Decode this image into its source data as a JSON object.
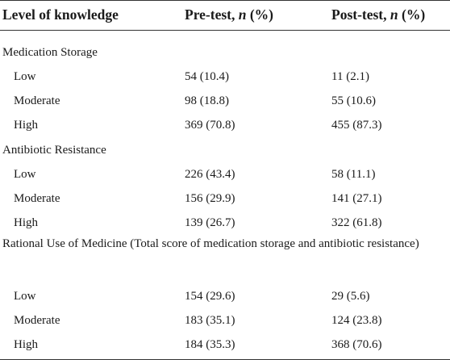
{
  "header": {
    "level": "Level of knowledge",
    "pre_prefix": "Pre-test, ",
    "pre_n": "n",
    "pre_suffix": " (%)",
    "post_prefix": "Post-test, ",
    "post_n": "n",
    "post_suffix": " (%)"
  },
  "groups": [
    {
      "title": "Medication Storage",
      "rows": [
        {
          "level": "Low",
          "pre": "54 (10.4)",
          "post": "11 (2.1)"
        },
        {
          "level": "Moderate",
          "pre": "98 (18.8)",
          "post": "55 (10.6)"
        },
        {
          "level": "High",
          "pre": "369 (70.8)",
          "post": "455 (87.3)"
        }
      ]
    },
    {
      "title": "Antibiotic Resistance",
      "rows": [
        {
          "level": "Low",
          "pre": "226 (43.4)",
          "post": "58 (11.1)"
        },
        {
          "level": "Moderate",
          "pre": "156 (29.9)",
          "post": "141 (27.1)"
        },
        {
          "level": "High",
          "pre": "139 (26.7)",
          "post": "322 (61.8)"
        }
      ]
    },
    {
      "title": "Rational Use of Medicine (Total score of medication storage and antibiotic resistance)",
      "rows": [
        {
          "level": "Low",
          "pre": "154 (29.6)",
          "post": "29 (5.6)"
        },
        {
          "level": "Moderate",
          "pre": "183 (35.1)",
          "post": "124 (23.8)"
        },
        {
          "level": "High",
          "pre": "184 (35.3)",
          "post": "368 (70.6)"
        }
      ]
    }
  ]
}
